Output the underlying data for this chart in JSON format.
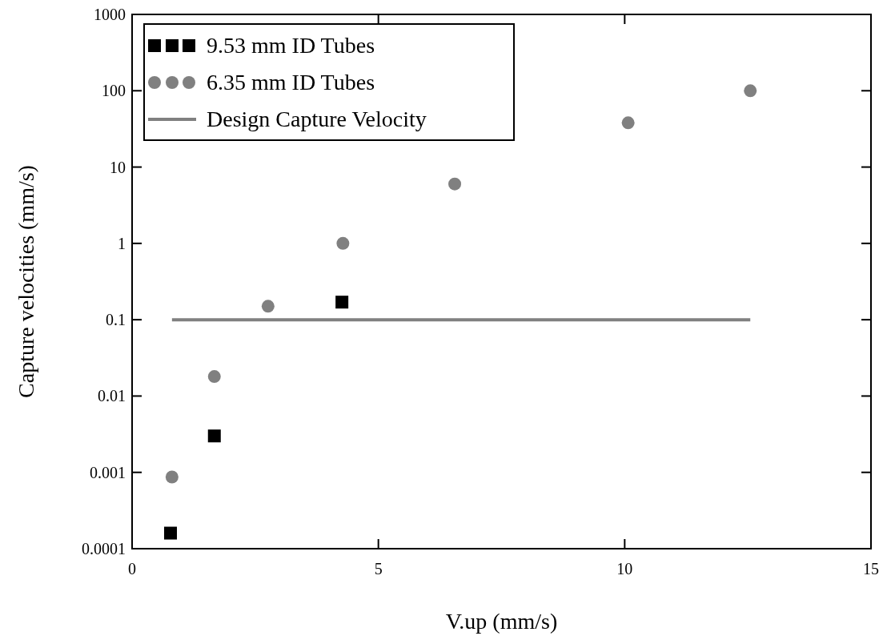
{
  "chart_data": {
    "type": "scatter",
    "xlabel": "V.up (mm/s)",
    "ylabel": "Capture velocities (mm/s)",
    "log": "y",
    "xlim": [
      0,
      15
    ],
    "xticks": [
      0,
      5,
      10,
      15
    ],
    "ylim": [
      0.0001,
      1000
    ],
    "yticks": [
      0.0001,
      0.001,
      0.01,
      0.1,
      1,
      10,
      100,
      1000
    ],
    "grid": false,
    "legend": "top left",
    "series": [
      {
        "name": "9.53 mm ID Tubes",
        "marker": "square",
        "color": "#000000",
        "x": [
          0.78,
          1.67,
          4.26
        ],
        "values": [
          0.00016,
          0.003,
          0.17
        ]
      },
      {
        "name": "6.35 mm ID Tubes",
        "marker": "circle",
        "color": "#808080",
        "x": [
          0.81,
          1.67,
          2.76,
          4.28,
          6.55,
          10.07,
          12.55
        ],
        "values": [
          0.00087,
          0.018,
          0.15,
          1,
          6,
          38,
          100
        ]
      },
      {
        "name": "Design Capture Velocity",
        "type": "line",
        "marker": "none",
        "line_style": "solid",
        "color": "#808080",
        "x": [
          0.81,
          12.55
        ],
        "values": [
          0.1,
          0.1
        ]
      }
    ]
  }
}
